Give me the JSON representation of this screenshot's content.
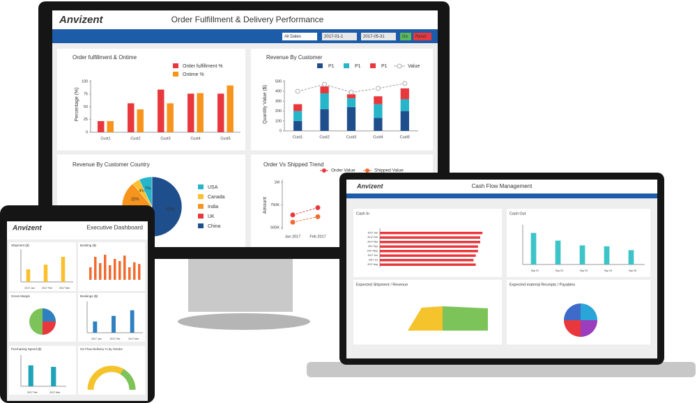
{
  "monitor": {
    "logo": "Anvizent",
    "title": "Order Fulfillment & Delivery Performance",
    "filters": {
      "dates": "All Dates",
      "from": "2017-01-1",
      "to": "2017-05-31",
      "go": "Go",
      "reset": "Reset"
    },
    "fulfillment": {
      "title": "Order fulfillment & Ontime",
      "ylabel": "Percentage (%)",
      "categories": [
        "Cust1",
        "Cust2",
        "Cust3",
        "Cust4",
        "Cust5"
      ],
      "series": [
        {
          "name": "Order fulfillment %",
          "color": "#e8383d",
          "values": [
            22,
            57,
            84,
            76,
            76
          ]
        },
        {
          "name": "Ontime %",
          "color": "#f7941d",
          "values": [
            22,
            45,
            57,
            77,
            92
          ]
        }
      ],
      "ylim": [
        0,
        100
      ],
      "yticks": [
        0,
        25,
        50,
        75,
        100
      ]
    },
    "revenue": {
      "title": "Revenue By Customer",
      "ylabel": "Quantity Value ($)",
      "categories": [
        "Cust1",
        "Cust2",
        "Cust3",
        "Cust4",
        "Cust5"
      ],
      "series": [
        {
          "name": "P1",
          "color": "#1f4e8c",
          "values": [
            100,
            220,
            240,
            130,
            200
          ]
        },
        {
          "name": "P1",
          "color": "#26b5c9",
          "values": [
            100,
            160,
            90,
            140,
            120
          ]
        },
        {
          "name": "P1",
          "color": "#e8383d",
          "values": [
            70,
            70,
            40,
            80,
            110
          ]
        },
        {
          "name": "Value",
          "color": "#aaaaaa",
          "type": "line",
          "values": [
            400,
            470,
            390,
            430,
            480
          ]
        }
      ],
      "ylim": [
        0,
        500
      ],
      "yticks": [
        0,
        100,
        200,
        300,
        400,
        500
      ]
    },
    "country": {
      "title": "Revenue By Customer Country",
      "categories": [
        "USA",
        "Canada",
        "India",
        "UK",
        "China"
      ],
      "values": [
        7,
        4,
        15,
        19,
        55
      ],
      "value_labels": [
        "7%",
        "4%",
        "15%",
        null,
        "55%"
      ],
      "colors": [
        "#26b5c9",
        "#fbc02d",
        "#f7941d",
        "#e8383d",
        "#1f4e8c"
      ]
    },
    "trend": {
      "title": "Order Vs Shipped Trend",
      "ylabel": "Amount",
      "x": [
        "Jan 2017",
        "Feb 2017"
      ],
      "series": [
        {
          "name": "Order Value",
          "color": "#e8383d",
          "values": [
            640000,
            720000
          ]
        },
        {
          "name": "Shipped Value",
          "color": "#f26a2e",
          "values": [
            560000,
            620000
          ]
        }
      ],
      "ylim": [
        500000,
        1000000
      ],
      "yticks": [
        {
          "value": 500000,
          "label": "500K"
        },
        {
          "value": 750000,
          "label": "750K"
        },
        {
          "value": 1000000,
          "label": "1M"
        }
      ]
    }
  },
  "laptop": {
    "logo": "Anvizent",
    "title": "Cash Flow Management",
    "cash_in": {
      "title": "Cash In",
      "categories": [
        "2017 Jan",
        "2017 Feb",
        "2017 Mar",
        "2017 Apr",
        "2017 May",
        "2017 Jun",
        "2017 Jul",
        "2017 Aug"
      ],
      "values": [
        4.6,
        4.5,
        4.5,
        4.4,
        4.4,
        4.3,
        4.2,
        4.3
      ],
      "xlim": [
        0,
        5
      ],
      "color": "#e8383d"
    },
    "cash_out": {
      "title": "Cash Out",
      "categories": [
        "Sup 01",
        "Sup 02",
        "Sup 03",
        "Sup 04",
        "Sup 05"
      ],
      "values": [
        165,
        125,
        100,
        95,
        75
      ],
      "ylim": [
        0,
        200
      ],
      "color": "#3cc4c9"
    },
    "shipment": {
      "title": "Expected Shipment / Revenue"
    },
    "receipts": {
      "title": "Expected material Receipts / Payables"
    }
  },
  "tablet": {
    "logo": "Anvizent",
    "title": "Executive Dashboard",
    "shipment": {
      "title": "Shipment ($)",
      "categories": [
        "2017 Jan",
        "2017 Feb",
        "2017 Mar"
      ],
      "values": [
        40,
        55,
        80
      ],
      "ylim": [
        0,
        100
      ],
      "color": "#fbc02d"
    },
    "booking": {
      "title": "Booking ($)"
    },
    "margin": {
      "title": "Gross Margin"
    },
    "bookings": {
      "title": "Bookings ($)",
      "categories": [
        "2017 Jan",
        "2017 Feb",
        "2017 Mar"
      ],
      "values": [
        30,
        45,
        60
      ],
      "ylim": [
        0,
        80
      ],
      "color": "#2f7fc1"
    },
    "purchasing": {
      "title": "Purchasing Spend ($)",
      "categories": [
        "2017 Feb",
        "2017 Mar"
      ],
      "values": [
        70,
        65
      ],
      "ylim": [
        0,
        100
      ],
      "color": "#1fa3b8"
    },
    "delivery": {
      "title": "On Flow Delivery % by Vendor"
    }
  }
}
